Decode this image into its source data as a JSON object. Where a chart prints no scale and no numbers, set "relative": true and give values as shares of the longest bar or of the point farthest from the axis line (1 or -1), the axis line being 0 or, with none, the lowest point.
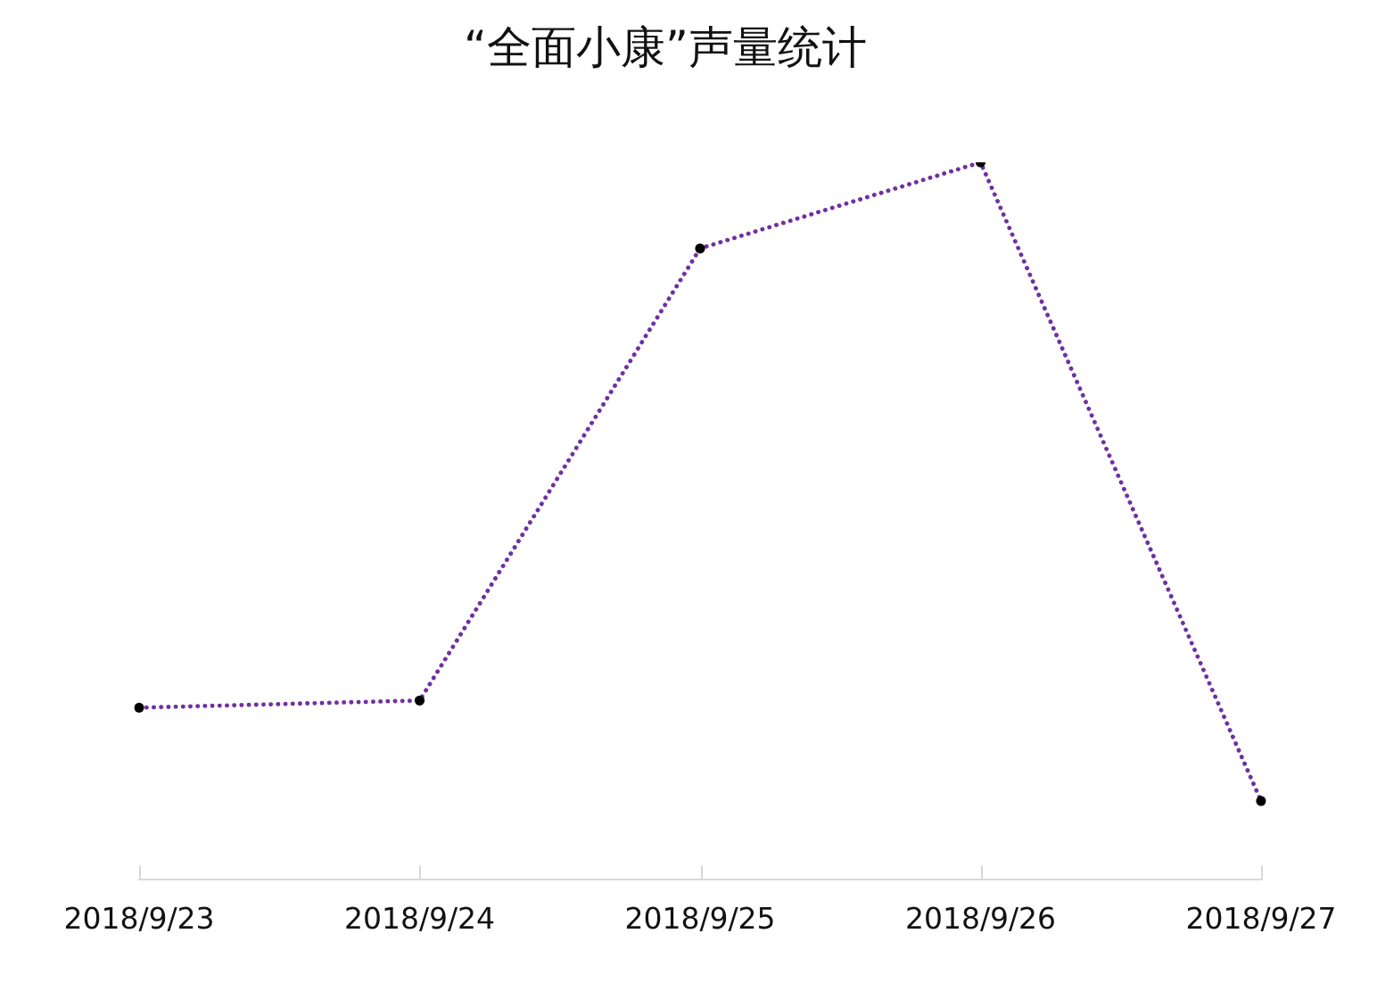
{
  "chart_data": {
    "type": "line",
    "title": "“全面小康”声量统计",
    "categories": [
      "2018/9/23",
      "2018/9/24",
      "2018/9/25",
      "2018/9/26",
      "2018/9/27"
    ],
    "series": [
      {
        "color": "#7030a0",
        "colors": [
          "#000000",
          "#000000",
          "#000000",
          "#000000",
          "#000000"
        ],
        "values": [
          0.24,
          0.25,
          0.88,
          1,
          0.11
        ]
      }
    ],
    "relative": true,
    "marker": "circle",
    "line_style": "dotted"
  }
}
